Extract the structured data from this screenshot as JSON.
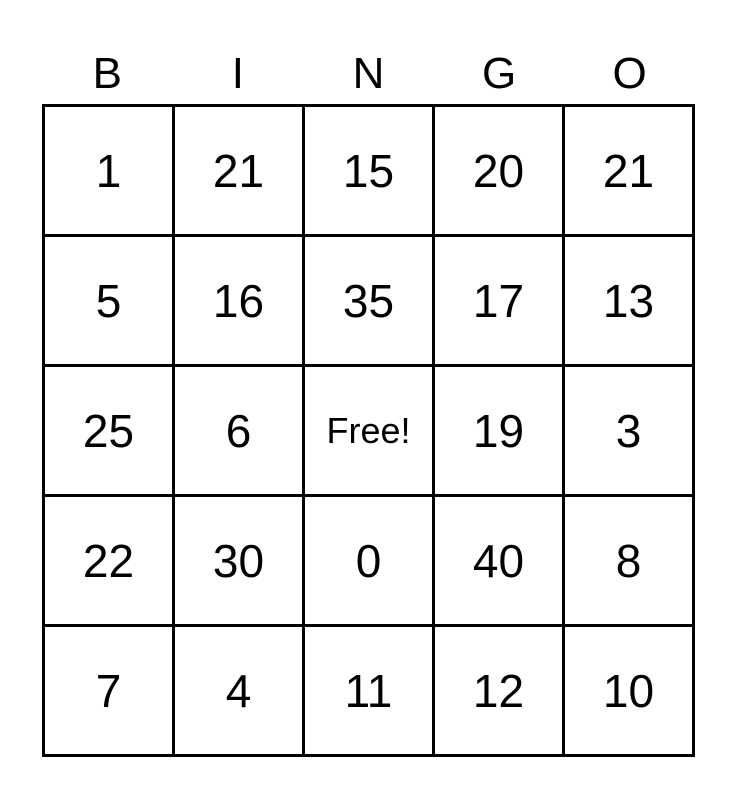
{
  "headers": [
    "B",
    "I",
    "N",
    "G",
    "O"
  ],
  "rows": [
    [
      "1",
      "21",
      "15",
      "20",
      "21"
    ],
    [
      "5",
      "16",
      "35",
      "17",
      "13"
    ],
    [
      "25",
      "6",
      "Free!",
      "19",
      "3"
    ],
    [
      "22",
      "30",
      "0",
      "40",
      "8"
    ],
    [
      "7",
      "4",
      "11",
      "12",
      "10"
    ]
  ]
}
